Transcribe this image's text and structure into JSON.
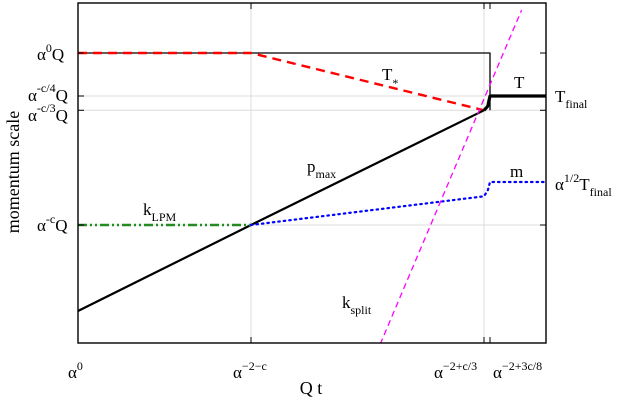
{
  "chart_data": {
    "type": "line",
    "title": "",
    "xlabel": "Q t",
    "ylabel": "momentum scale",
    "grid": true,
    "x_ticks": [
      {
        "base": "α",
        "exp": "0"
      },
      {
        "base": "α",
        "exp": "−2−c"
      },
      {
        "base": "α",
        "exp": "−2+c/3"
      },
      {
        "base": "α",
        "exp": "−2+3c/8"
      }
    ],
    "y_ticks": [
      {
        "base": "α",
        "exp": "0",
        "suffix": "Q"
      },
      {
        "base": "α",
        "exp": "-c/4",
        "suffix": "Q"
      },
      {
        "base": "α",
        "exp": "-c/3",
        "suffix": "Q"
      },
      {
        "base": "α",
        "exp": "-c",
        "suffix": "Q"
      }
    ],
    "right_labels": [
      {
        "main": "T",
        "sub": "final"
      },
      {
        "main": "α",
        "sup": "1/2",
        "rest": "T",
        "sub": "final"
      }
    ],
    "curve_labels": [
      {
        "main": "T",
        "sup": "*"
      },
      {
        "main": "T"
      },
      {
        "main": "p",
        "sub": "max"
      },
      {
        "main": "m"
      },
      {
        "main": "k",
        "sub": "LPM"
      },
      {
        "main": "k",
        "sub": "split"
      }
    ],
    "series": [
      {
        "id": "upper-bound",
        "style": "solid-thin",
        "color": "#000000",
        "x": [
          0,
          1,
          2.025,
          2.025
        ],
        "y": [
          0,
          0,
          0,
          -0.333
        ]
      },
      {
        "id": "T-star",
        "style": "dashed",
        "color": "#ff0000",
        "x": [
          0,
          1,
          1.96
        ],
        "y": [
          0,
          0,
          -0.333
        ]
      },
      {
        "id": "T",
        "style": "solid-thick",
        "color": "#000000",
        "x": [
          1.96,
          2.0,
          2.025,
          2.3
        ],
        "y": [
          -0.333,
          -0.31,
          -0.25,
          -0.25
        ]
      },
      {
        "id": "p-max",
        "style": "solid",
        "color": "#000000",
        "x": [
          0,
          1,
          1.96
        ],
        "y": [
          -1.5,
          -1,
          -0.333
        ]
      },
      {
        "id": "k-LPM",
        "style": "dash-dot-dot",
        "color": "#228b22",
        "x": [
          0,
          1
        ],
        "y": [
          -1,
          -1
        ]
      },
      {
        "id": "m",
        "style": "dotted",
        "color": "#0000ff",
        "x": [
          1,
          1.96,
          2.0,
          2.025,
          2.3
        ],
        "y": [
          -1,
          -0.833,
          -0.8,
          -0.75,
          -0.75
        ]
      },
      {
        "id": "k-split",
        "style": "dashed-thin",
        "color": "#ff00ff",
        "x": [
          1.5,
          2.18
        ],
        "y": [
          -1.8,
          0.25
        ]
      }
    ]
  }
}
